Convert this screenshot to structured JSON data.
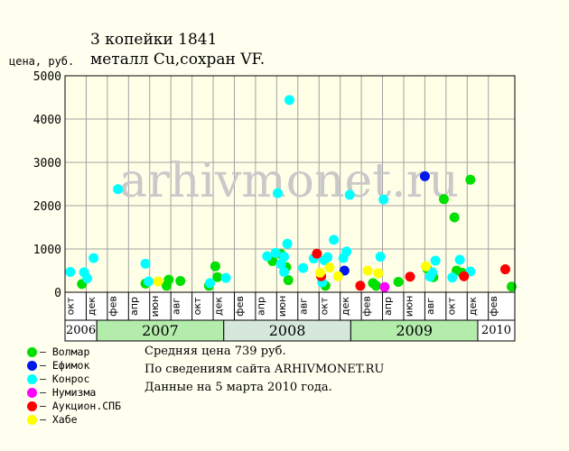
{
  "title": {
    "line1": "3 копейки 1841",
    "line2": "металл Cu,сохран VF."
  },
  "watermark": "arhivmonet.ru",
  "legend": [
    {
      "name": "Волмар",
      "color": "#00e000",
      "icon": "green-dot"
    },
    {
      "name": "Ефимок",
      "color": "#0018e8",
      "icon": "blue-dot"
    },
    {
      "name": "Конрос",
      "color": "#00ffff",
      "icon": "cyan-dot"
    },
    {
      "name": "Нумизма",
      "color": "#ff00ff",
      "icon": "magenta-dot"
    },
    {
      "name": "Аукцион.СПБ",
      "color": "#ff0000",
      "icon": "red-dot"
    },
    {
      "name": "Хабе",
      "color": "#ffff00",
      "icon": "yellow-dot"
    }
  ],
  "notes": {
    "average": "Средняя цена 739 руб.",
    "source": "По сведениям сайта ARHIVMONET.RU",
    "date": "Данные на 5 марта 2010 года."
  },
  "colors": {
    "background": "#fffff0",
    "plot_background": "#ffffe8",
    "grid": "#a0a0a0",
    "year_green": "#b3ecab",
    "year_gray": "#d6e8dc",
    "watermark": "#c9c9c9"
  },
  "chart_data": {
    "type": "scatter",
    "title": "3 копейки 1841",
    "subtitle": "металл Cu,сохран VF.",
    "xlabel": "",
    "ylabel": "цена, руб.",
    "ylim": [
      0,
      5000
    ],
    "yticks": [
      0,
      1000,
      2000,
      3000,
      4000,
      5000
    ],
    "x_unit": "month index from Oct 2006 (0 = окт 2006)",
    "xlim": [
      0,
      42.5
    ],
    "grid": true,
    "legend_position": "bottom-left",
    "month_ticks": [
      {
        "x": 0,
        "label": "окт"
      },
      {
        "x": 2,
        "label": "дек"
      },
      {
        "x": 4,
        "label": "фев"
      },
      {
        "x": 6,
        "label": "апр"
      },
      {
        "x": 8,
        "label": "июн"
      },
      {
        "x": 10,
        "label": "авг"
      },
      {
        "x": 12,
        "label": "окт"
      },
      {
        "x": 14,
        "label": "дек"
      },
      {
        "x": 16,
        "label": "фев"
      },
      {
        "x": 18,
        "label": "апр"
      },
      {
        "x": 20,
        "label": "июн"
      },
      {
        "x": 22,
        "label": "авг"
      },
      {
        "x": 24,
        "label": "окт"
      },
      {
        "x": 26,
        "label": "дек"
      },
      {
        "x": 28,
        "label": "фев"
      },
      {
        "x": 30,
        "label": "апр"
      },
      {
        "x": 32,
        "label": "июн"
      },
      {
        "x": 34,
        "label": "авг"
      },
      {
        "x": 36,
        "label": "окт"
      },
      {
        "x": 38,
        "label": "дек"
      },
      {
        "x": 40,
        "label": "фев"
      }
    ],
    "years": [
      {
        "label": "2006",
        "x0": 0,
        "x1": 3,
        "style": "white"
      },
      {
        "label": "2007",
        "x0": 3,
        "x1": 15,
        "style": "green"
      },
      {
        "label": "2008",
        "x0": 15,
        "x1": 27,
        "style": "gray"
      },
      {
        "label": "2009",
        "x0": 27,
        "x1": 39,
        "style": "green"
      },
      {
        "label": "2010",
        "x0": 39,
        "x1": 42.5,
        "style": "white"
      }
    ],
    "series": [
      {
        "name": "Волмар",
        "color": "#00e000",
        "points": [
          [
            1.6,
            190
          ],
          [
            7.6,
            200
          ],
          [
            9.6,
            150
          ],
          [
            9.8,
            290
          ],
          [
            10.9,
            260
          ],
          [
            13.6,
            150
          ],
          [
            14.2,
            600
          ],
          [
            14.4,
            350
          ],
          [
            19.6,
            720
          ],
          [
            20.4,
            880
          ],
          [
            20.9,
            580
          ],
          [
            21.1,
            280
          ],
          [
            24.6,
            150
          ],
          [
            29.1,
            210
          ],
          [
            29.4,
            150
          ],
          [
            31.5,
            240
          ],
          [
            34.2,
            550
          ],
          [
            34.8,
            350
          ],
          [
            35.8,
            2150
          ],
          [
            36.8,
            1730
          ],
          [
            37.0,
            500
          ],
          [
            37.5,
            450
          ],
          [
            38.3,
            2600
          ],
          [
            42.2,
            130
          ]
        ]
      },
      {
        "name": "Ефимок",
        "color": "#0018e8",
        "points": [
          [
            26.4,
            500
          ],
          [
            34.0,
            2680
          ]
        ]
      },
      {
        "name": "Конрос",
        "color": "#00ffff",
        "points": [
          [
            0.5,
            470
          ],
          [
            1.8,
            460
          ],
          [
            2.1,
            320
          ],
          [
            2.7,
            790
          ],
          [
            5.0,
            2380
          ],
          [
            7.6,
            660
          ],
          [
            7.9,
            250
          ],
          [
            13.7,
            210
          ],
          [
            15.2,
            330
          ],
          [
            19.1,
            830
          ],
          [
            19.9,
            910
          ],
          [
            20.1,
            2290
          ],
          [
            20.4,
            650
          ],
          [
            20.7,
            470
          ],
          [
            20.7,
            820
          ],
          [
            21.0,
            1120
          ],
          [
            21.2,
            4440
          ],
          [
            22.5,
            560
          ],
          [
            23.5,
            780
          ],
          [
            24.3,
            230
          ],
          [
            24.5,
            740
          ],
          [
            24.8,
            810
          ],
          [
            25.4,
            1210
          ],
          [
            26.3,
            790
          ],
          [
            26.6,
            940
          ],
          [
            26.9,
            2250
          ],
          [
            29.8,
            820
          ],
          [
            30.1,
            2140
          ],
          [
            34.5,
            360
          ],
          [
            34.7,
            460
          ],
          [
            35.0,
            730
          ],
          [
            36.6,
            340
          ],
          [
            37.3,
            750
          ],
          [
            38.3,
            480
          ]
        ]
      },
      {
        "name": "Нумизма",
        "color": "#ff00ff",
        "points": [
          [
            30.2,
            120
          ]
        ]
      },
      {
        "name": "Аукцион.СПБ",
        "color": "#ff0000",
        "points": [
          [
            23.8,
            890
          ],
          [
            24.2,
            370
          ],
          [
            27.9,
            150
          ],
          [
            32.6,
            360
          ],
          [
            37.7,
            370
          ],
          [
            41.6,
            530
          ]
        ]
      },
      {
        "name": "Хабе",
        "color": "#ffff00",
        "points": [
          [
            8.8,
            250
          ],
          [
            24.1,
            450
          ],
          [
            25.0,
            570
          ],
          [
            25.8,
            370
          ],
          [
            28.6,
            500
          ],
          [
            29.6,
            440
          ],
          [
            34.1,
            600
          ]
        ]
      }
    ]
  }
}
